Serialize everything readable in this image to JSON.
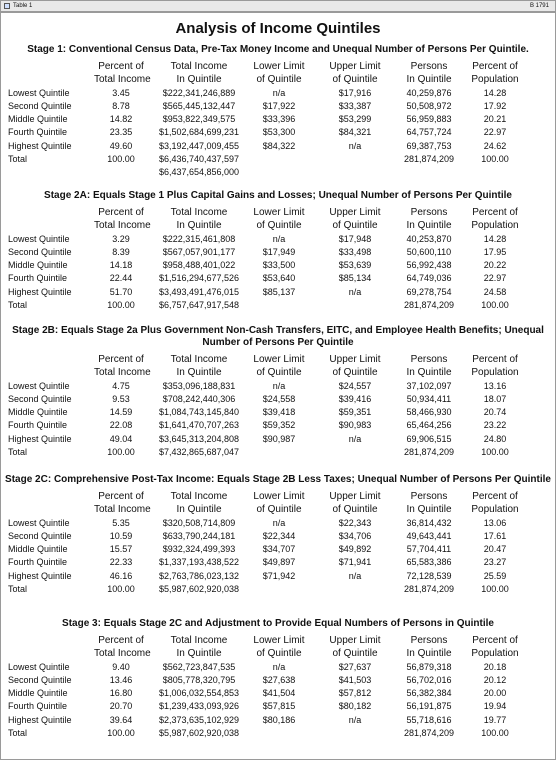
{
  "window": {
    "title": "Table 1",
    "badge": "B 1791"
  },
  "title": "Analysis of Income Quintiles",
  "sections": [
    {
      "title": "Stage 1:  Conventional Census Data, Pre-Tax Money Income and Unequal Number of Persons Per Quintile.",
      "header1": [
        "",
        "Percent of",
        "Total Income",
        "Lower Limit",
        "Upper Limit",
        "Persons",
        "Percent of"
      ],
      "header2": [
        "",
        "Total Income",
        "In Quintile",
        "of Quintile",
        "of Quintile",
        "In Quintile",
        "Population"
      ],
      "rows": [
        [
          "Lowest Quintile",
          "3.45",
          "$222,341,246,889",
          "n/a",
          "$17,916",
          "40,259,876",
          "14.28"
        ],
        [
          "Second Quintile",
          "8.78",
          "$565,445,132,447",
          "$17,922",
          "$33,387",
          "50,508,972",
          "17.92"
        ],
        [
          "Middle Quintile",
          "14.82",
          "$953,822,349,575",
          "$33,396",
          "$53,299",
          "56,959,883",
          "20.21"
        ],
        [
          "Fourth Quintile",
          "23.35",
          "$1,502,684,699,231",
          "$53,300",
          "$84,321",
          "64,757,724",
          "22.97"
        ],
        [
          "Highest Quintile",
          "49.60",
          "$3,192,447,009,455",
          "$84,322",
          "n/a",
          "69,387,753",
          "24.62"
        ],
        [
          "Total",
          "100.00",
          "$6,436,740,437,597",
          "",
          "",
          "281,874,209",
          "100.00"
        ],
        [
          "",
          "",
          "$6,437,654,856,000",
          "",
          "",
          "",
          ""
        ]
      ]
    },
    {
      "title": "Stage 2A:  Equals Stage 1 Plus Capital Gains and Losses; Unequal Number of Persons Per Quintile",
      "header1": [
        "",
        "Percent of",
        "Total Income",
        "Lower Limit",
        "Upper Limit",
        "Persons",
        "Percent of"
      ],
      "header2": [
        "",
        "Total Income",
        "In Quintile",
        "of Quintile",
        "of Quintile",
        "In Quintile",
        "Population"
      ],
      "rows": [
        [
          "Lowest Quintile",
          "3.29",
          "$222,315,461,808",
          "n/a",
          "$17,948",
          "40,253,870",
          "14.28"
        ],
        [
          "Second Quintile",
          "8.39",
          "$567,057,901,177",
          "$17,949",
          "$33,498",
          "50,600,110",
          "17.95"
        ],
        [
          "Middle Quintile",
          "14.18",
          "$958,488,401,022",
          "$33,500",
          "$53,639",
          "56,992,438",
          "20.22"
        ],
        [
          "Fourth Quintile",
          "22.44",
          "$1,516,294,677,526",
          "$53,640",
          "$85,134",
          "64,749,036",
          "22.97"
        ],
        [
          "Highest Quintile",
          "51.70",
          "$3,493,491,476,015",
          "$85,137",
          "n/a",
          "69,278,754",
          "24.58"
        ],
        [
          "Total",
          "100.00",
          "$6,757,647,917,548",
          "",
          "",
          "281,874,209",
          "100.00"
        ]
      ]
    },
    {
      "title": "Stage 2B:  Equals Stage 2a  Plus Government Non-Cash Transfers, EITC, and Employee Health Benefits; Unequal Number of Persons Per Quintile",
      "header1": [
        "",
        "Percent of",
        "Total Income",
        "Lower Limit",
        "Upper Limit",
        "Persons",
        "Percent of"
      ],
      "header2": [
        "",
        "Total Income",
        "In Quintile",
        "of Quintile",
        "of Quintile",
        "In Quintile",
        "Population"
      ],
      "rows": [
        [
          "Lowest Quintile",
          "4.75",
          "$353,096,188,831",
          "n/a",
          "$24,557",
          "37,102,097",
          "13.16"
        ],
        [
          "Second Quintile",
          "9.53",
          "$708,242,440,306",
          "$24,558",
          "$39,416",
          "50,934,411",
          "18.07"
        ],
        [
          "Middle Quintile",
          "14.59",
          "$1,084,743,145,840",
          "$39,418",
          "$59,351",
          "58,466,930",
          "20.74"
        ],
        [
          "Fourth Quintile",
          "22.08",
          "$1,641,470,707,263",
          "$59,352",
          "$90,983",
          "65,464,256",
          "23.22"
        ],
        [
          "Highest Quintile",
          "49.04",
          "$3,645,313,204,808",
          "$90,987",
          "n/a",
          "69,906,515",
          "24.80"
        ],
        [
          "Total",
          "100.00",
          "$7,432,865,687,047",
          "",
          "",
          "281,874,209",
          "100.00"
        ]
      ]
    },
    {
      "title": "Stage 2C:  Comprehensive Post-Tax Income:  Equals Stage 2B Less Taxes; Unequal Number of Persons Per Quintile",
      "header1": [
        "",
        "Percent of",
        "Total Income",
        "Lower Limit",
        "Upper Limit",
        "Persons",
        "Percent of"
      ],
      "header2": [
        "",
        "Total Income",
        "In Quintile",
        "of Quintile",
        "of Quintile",
        "In Quintile",
        "Population"
      ],
      "rows": [
        [
          "Lowest Quintile",
          "5.35",
          "$320,508,714,809",
          "n/a",
          "$22,343",
          "36,814,432",
          "13.06"
        ],
        [
          "Second Quintile",
          "10.59",
          "$633,790,244,181",
          "$22,344",
          "$34,706",
          "49,643,441",
          "17.61"
        ],
        [
          "Middle Quintile",
          "15.57",
          "$932,324,499,393",
          "$34,707",
          "$49,892",
          "57,704,411",
          "20.47"
        ],
        [
          "Fourth Quintile",
          "22.33",
          "$1,337,193,438,522",
          "$49,897",
          "$71,941",
          "65,583,386",
          "23.27"
        ],
        [
          "Highest Quintile",
          "46.16",
          "$2,763,786,023,132",
          "$71,942",
          "n/a",
          "72,128,539",
          "25.59"
        ],
        [
          "Total",
          "100.00",
          "$5,987,602,920,038",
          "",
          "",
          "281,874,209",
          "100.00"
        ]
      ]
    },
    {
      "title": "Stage 3:  Equals Stage 2C and Adjustment to Provide Equal Numbers of Persons in Quintile",
      "header1": [
        "",
        "Percent of",
        "Total Income",
        "Lower Limit",
        "Upper Limit",
        "Persons",
        "Percent of"
      ],
      "header2": [
        "",
        "Total Income",
        "In Quintile",
        "of Quintile",
        "of Quintile",
        "In Quintile",
        "Population"
      ],
      "rows": [
        [
          "Lowest Quintile",
          "9.40",
          "$562,723,847,535",
          "n/a",
          "$27,637",
          "56,879,318",
          "20.18"
        ],
        [
          "Second Quintile",
          "13.46",
          "$805,778,320,795",
          "$27,638",
          "$41,503",
          "56,702,016",
          "20.12"
        ],
        [
          "Middle Quintile",
          "16.80",
          "$1,006,032,554,853",
          "$41,504",
          "$57,812",
          "56,382,384",
          "20.00"
        ],
        [
          "Fourth Quintile",
          "20.70",
          "$1,239,433,093,926",
          "$57,815",
          "$80,182",
          "56,191,875",
          "19.94"
        ],
        [
          "Highest Quintile",
          "39.64",
          "$2,373,635,102,929",
          "$80,186",
          "n/a",
          "55,718,616",
          "19.77"
        ],
        [
          "Total",
          "100.00",
          "$5,987,602,920,038",
          "",
          "",
          "281,874,209",
          "100.00"
        ]
      ]
    }
  ]
}
